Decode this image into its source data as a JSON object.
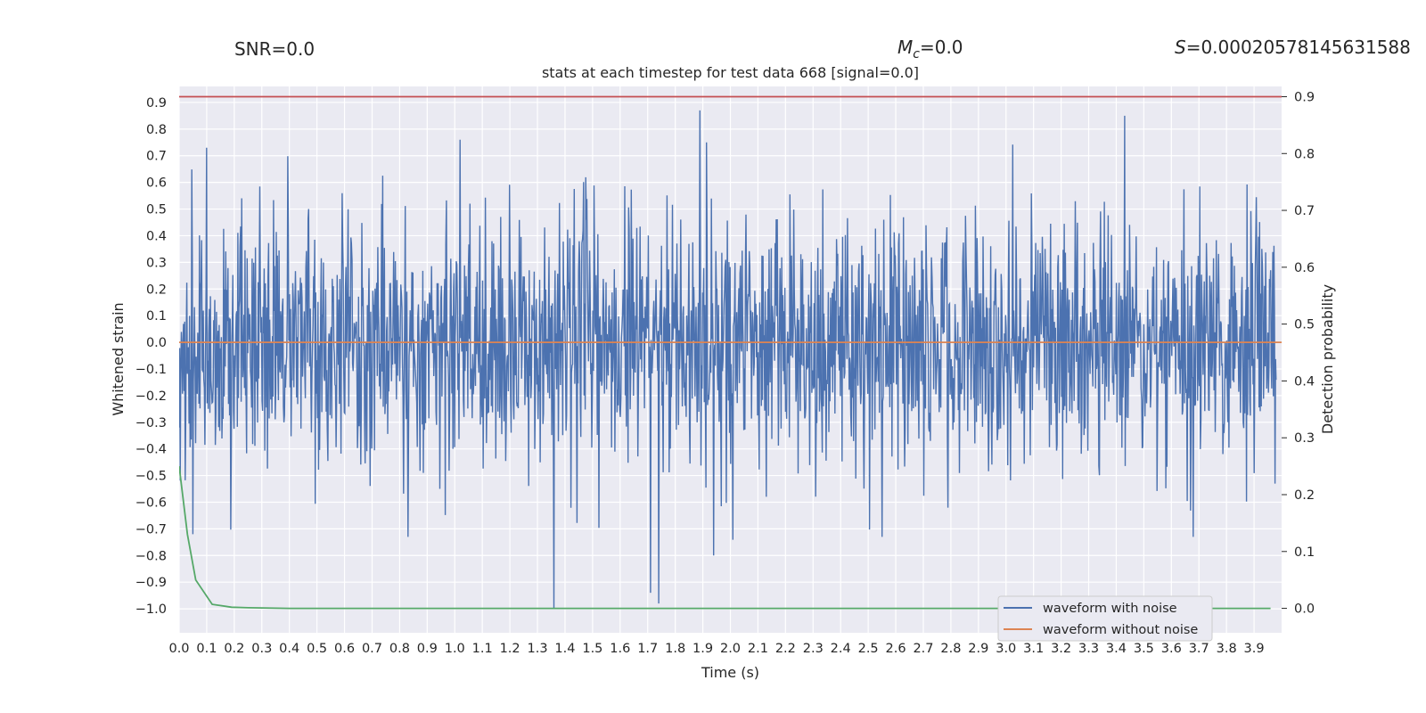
{
  "header": {
    "snr": "SNR=0.0",
    "mc_symbol": "M",
    "mc_sub": "c",
    "mc_value": "=0.0",
    "s_symbol": "S",
    "s_value": "=0.00020578145631588"
  },
  "chart_data": {
    "type": "line",
    "title": "stats at each timestep for test data 668 [signal=0.0]",
    "xlabel": "Time (s)",
    "ylabel": "Whitened strain",
    "ylabel_right": "Detection probability",
    "xlim": [
      0.0,
      4.0
    ],
    "ylim": [
      -1.09,
      0.96
    ],
    "ylim_right": [
      -0.043,
      0.918
    ],
    "x_ticks": [
      0.0,
      0.1,
      0.2,
      0.3,
      0.4,
      0.5,
      0.6,
      0.7,
      0.8,
      0.9,
      1.0,
      1.1,
      1.2,
      1.3,
      1.4,
      1.5,
      1.6,
      1.7,
      1.8,
      1.9,
      2.0,
      2.1,
      2.2,
      2.3,
      2.4,
      2.5,
      2.6,
      2.7,
      2.8,
      2.9,
      3.0,
      3.1,
      3.2,
      3.3,
      3.4,
      3.5,
      3.6,
      3.7,
      3.8,
      3.9
    ],
    "y_ticks": [
      0.9,
      0.8,
      0.7,
      0.6,
      0.5,
      0.4,
      0.3,
      0.2,
      0.1,
      0.0,
      -0.1,
      -0.2,
      -0.3,
      -0.4,
      -0.5,
      -0.6,
      -0.7,
      -0.8,
      -0.9,
      -1.0
    ],
    "y_ticks_right": [
      0.9,
      0.8,
      0.7,
      0.6,
      0.5,
      0.4,
      0.3,
      0.2,
      0.1,
      0.0
    ],
    "grid": true,
    "legend_position": "lower-right",
    "series": [
      {
        "name": "waveform with noise",
        "axis": "left",
        "color": "#4c72b0",
        "note_values": "dense noise, range approx -1.0 to 0.87",
        "approx_amplitude": 0.3,
        "peaks": [
          [
            1.36,
            -1.0
          ],
          [
            1.74,
            -0.98
          ],
          [
            1.71,
            -0.94
          ],
          [
            1.89,
            0.87
          ],
          [
            3.43,
            0.85
          ],
          [
            0.83,
            -0.73
          ],
          [
            0.1,
            0.73
          ],
          [
            0.05,
            -0.72
          ],
          [
            1.94,
            -0.8
          ],
          [
            1.02,
            0.76
          ],
          [
            2.55,
            -0.73
          ],
          [
            3.68,
            -0.73
          ]
        ]
      },
      {
        "name": "waveform without noise",
        "axis": "left",
        "color": "#dd8452",
        "x": [
          0.0,
          4.0
        ],
        "values": [
          0.0,
          0.0
        ]
      },
      {
        "axis": "right",
        "color": "#55a868",
        "x": [
          0.0,
          0.03,
          0.06,
          0.12,
          0.19,
          0.25,
          0.4,
          1.0,
          2.0,
          3.0,
          3.96
        ],
        "values": [
          0.25,
          0.13,
          0.05,
          0.007,
          0.002,
          0.001,
          0.0,
          0.0,
          0.0,
          0.0,
          0.0
        ]
      },
      {
        "axis": "right",
        "color": "#c44e52",
        "x": [
          0.0,
          4.0
        ],
        "values": [
          0.9,
          0.9
        ]
      }
    ]
  }
}
